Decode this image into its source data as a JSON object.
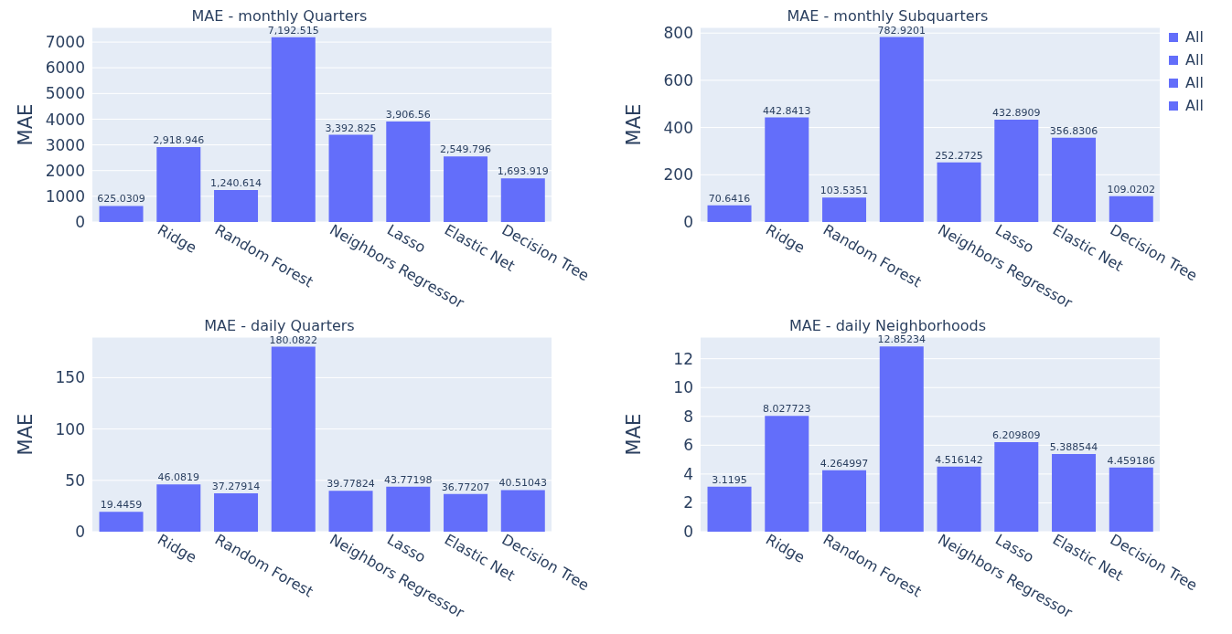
{
  "chart_data": [
    {
      "type": "bar",
      "title": "MAE - monthly Quarters",
      "ylabel": "MAE",
      "categories": [
        null,
        "Ridge",
        "Random Forest",
        null,
        "Neighbors Regressor",
        "Lasso",
        "Elastic Net",
        "Decision Tree"
      ],
      "series": [
        {
          "name": "All",
          "color": "#636efa",
          "values": [
            625.0309,
            2918.946,
            1240.614,
            7192.515,
            3392.825,
            3906.56,
            2549.796,
            1693.919
          ],
          "value_labels": [
            "625.0309",
            "2,918.946",
            "1,240.614",
            "7,192.515",
            "3,392.825",
            "3,906.56",
            "2,549.796",
            "1,693.919"
          ]
        }
      ],
      "ylim": [
        0,
        7571
      ],
      "yticks": [
        0,
        1000,
        2000,
        3000,
        4000,
        5000,
        6000,
        7000
      ],
      "grid": "y",
      "legend": false
    },
    {
      "type": "bar",
      "title": "MAE - monthly Subquarters",
      "ylabel": "MAE",
      "categories": [
        null,
        "Ridge",
        "Random Forest",
        null,
        "Neighbors Regressor",
        "Lasso",
        "Elastic Net",
        "Decision Tree"
      ],
      "series": [
        {
          "name": "All",
          "color": "#636efa",
          "values": [
            70.6416,
            442.8413,
            103.5351,
            782.9201,
            252.2725,
            432.8909,
            356.8306,
            109.0202
          ]
        }
      ],
      "data_labels": true,
      "ylim": [
        0,
        824
      ],
      "yticks": [
        0,
        200,
        400,
        600,
        800
      ],
      "grid": "y",
      "legend": "right"
    },
    {
      "type": "bar",
      "title": "MAE - daily Quarters",
      "ylabel": "MAE",
      "categories": [
        null,
        "Ridge",
        "Random Forest",
        null,
        "Neighbors Regressor",
        "Lasso",
        "Elastic Net",
        "Decision Tree"
      ],
      "series": [
        {
          "name": "All",
          "color": "#636efa",
          "values": [
            19.4459,
            46.0819,
            37.27914,
            180.0822,
            39.77824,
            43.77198,
            36.77207,
            40.51043
          ]
        }
      ],
      "data_labels": true,
      "ylim": [
        0,
        189.5
      ],
      "yticks": [
        0,
        50,
        100,
        150
      ],
      "grid": "y",
      "legend": false
    },
    {
      "type": "bar",
      "title": "MAE - daily Neighborhoods",
      "ylabel": "MAE",
      "categories": [
        null,
        "Ridge",
        "Random Forest",
        null,
        "Neighbors Regressor",
        "Lasso",
        "Elastic Net",
        "Decision Tree"
      ],
      "series": [
        {
          "name": "All",
          "color": "#636efa",
          "values": [
            3.1195,
            8.027723,
            4.264997,
            12.85234,
            4.516142,
            6.209809,
            5.388544,
            4.459186
          ]
        }
      ],
      "data_labels": true,
      "ylim": [
        0,
        13.5
      ],
      "yticks": [
        0,
        2,
        4,
        6,
        8,
        10,
        12
      ],
      "grid": "y",
      "legend": false
    }
  ]
}
